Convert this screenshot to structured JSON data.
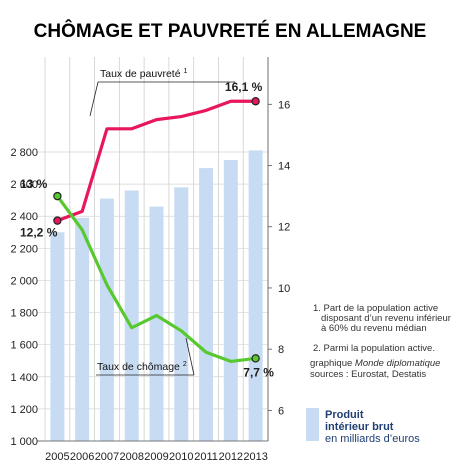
{
  "chart_data": {
    "type": "bar",
    "title": "CHÔMAGE ET PAUVRETÉ EN ALLEMAGNE",
    "categories": [
      "2005",
      "2006",
      "2007",
      "2008",
      "2009",
      "2010",
      "2011",
      "2012",
      "2013"
    ],
    "left_axis": {
      "ylim": [
        1000,
        2800
      ],
      "ticks": [
        "1 000",
        "1 200",
        "1 400",
        "1 600",
        "1 800",
        "2 000",
        "2 200",
        "2 400",
        "2 600",
        "2 800"
      ]
    },
    "right_axis": {
      "ylim": [
        5,
        16.5
      ],
      "ticks": [
        "6",
        "8",
        "10",
        "12",
        "14",
        "16"
      ]
    },
    "bars": {
      "name": "Produit intérieur brut",
      "unit": "en milliards d’euros",
      "color": "#c7dcf3",
      "values": [
        2300,
        2390,
        2510,
        2560,
        2460,
        2580,
        2700,
        2750,
        2810
      ]
    },
    "lines": [
      {
        "name": "Taux de pauvreté",
        "superscript": "1",
        "color": "#e8175d",
        "values": [
          12.2,
          12.5,
          15.2,
          15.2,
          15.5,
          15.6,
          15.8,
          16.1,
          16.1
        ],
        "label_first": "12,2 %",
        "label_last": "16,1 %"
      },
      {
        "name": "Taux de chômage",
        "superscript": "2",
        "color": "#58c82f",
        "values": [
          13.0,
          11.9,
          10.1,
          8.7,
          9.1,
          8.6,
          7.9,
          7.6,
          7.7
        ],
        "label_first": "13 %",
        "label_last": "7,7 %"
      }
    ],
    "notes": [
      [
        "1. Part de la population active",
        "disposant d’un revenu inférieur",
        "à 60% du revenu médian"
      ],
      [
        "2. Parmi la population active."
      ]
    ],
    "credit": {
      "prefix": "graphique ",
      "italic": "Monde diplomatique",
      "sources": "sources : Eurostat, Destatis"
    },
    "legend_line_1": "Produit",
    "legend_line_2": "intérieur brut",
    "legend_line_3": "en milliards d’euros"
  }
}
